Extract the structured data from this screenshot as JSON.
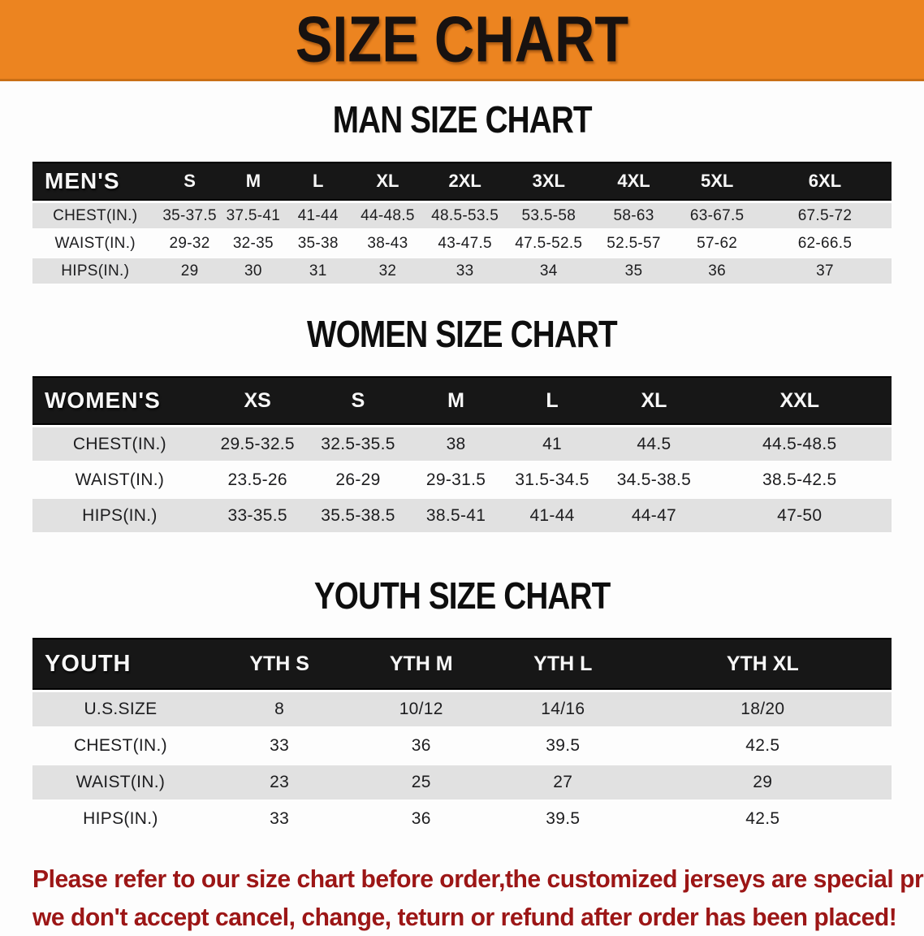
{
  "banner": {
    "title": "SIZE CHART",
    "bg_color": "#ec8420",
    "text_color": "#181210"
  },
  "colors": {
    "table_header_bar": "#171717",
    "row_shaded": "#e1e1e1",
    "disclaimer_text": "#9c1616"
  },
  "sections": [
    {
      "title": "MAN SIZE CHART",
      "table": {
        "header": [
          "MEN'S",
          "S",
          "M",
          "L",
          "XL",
          "2XL",
          "3XL",
          "4XL",
          "5XL",
          "6XL"
        ],
        "col_widths": [
          "14.6%",
          "7.4%",
          "7.4%",
          "7.7%",
          "8.5%",
          "9.5%",
          "10%",
          "9.8%",
          "9.6%",
          "15.5%"
        ],
        "rows": [
          {
            "label": "CHEST(IN.)",
            "shaded": true,
            "values": [
              "35-37.5",
              "37.5-41",
              "41-44",
              "44-48.5",
              "48.5-53.5",
              "53.5-58",
              "58-63",
              "63-67.5",
              "67.5-72"
            ]
          },
          {
            "label": "WAIST(IN.)",
            "shaded": false,
            "values": [
              "29-32",
              "32-35",
              "35-38",
              "38-43",
              "43-47.5",
              "47.5-52.5",
              "52.5-57",
              "57-62",
              "62-66.5"
            ]
          },
          {
            "label": "HIPS(IN.)",
            "shaded": true,
            "values": [
              "29",
              "30",
              "31",
              "32",
              "33",
              "34",
              "35",
              "36",
              "37"
            ]
          }
        ]
      }
    },
    {
      "title": "WOMEN SIZE CHART",
      "table": {
        "header": [
          "WOMEN'S",
          "XS",
          "S",
          "M",
          "L",
          "XL",
          "XXL"
        ],
        "col_widths": [
          "20.3%",
          "11.8%",
          "11.6%",
          "11.2%",
          "11.2%",
          "12.5%",
          "21.4%"
        ],
        "rows": [
          {
            "label": "CHEST(IN.)",
            "shaded": true,
            "values": [
              "29.5-32.5",
              "32.5-35.5",
              "38",
              "41",
              "44.5",
              "44.5-48.5"
            ]
          },
          {
            "label": "WAIST(IN.)",
            "shaded": false,
            "values": [
              "23.5-26",
              "26-29",
              "29-31.5",
              "31.5-34.5",
              "34.5-38.5",
              "38.5-42.5"
            ]
          },
          {
            "label": "HIPS(IN.)",
            "shaded": true,
            "values": [
              "33-35.5",
              "35.5-38.5",
              "38.5-41",
              "41-44",
              "44-47",
              "47-50"
            ]
          }
        ]
      }
    },
    {
      "title": "YOUTH SIZE CHART",
      "table": {
        "header": [
          "YOUTH",
          "YTH S",
          "YTH M",
          "YTH L",
          "YTH XL"
        ],
        "col_widths": [
          "20.5%",
          "16.5%",
          "16.5%",
          "16.5%",
          "30%"
        ],
        "rows": [
          {
            "label": "U.S.SIZE",
            "shaded": true,
            "values": [
              "8",
              "10/12",
              "14/16",
              "18/20"
            ]
          },
          {
            "label": "CHEST(IN.)",
            "shaded": false,
            "values": [
              "33",
              "36",
              "39.5",
              "42.5"
            ]
          },
          {
            "label": "WAIST(IN.)",
            "shaded": true,
            "values": [
              "23",
              "25",
              "27",
              "29"
            ]
          },
          {
            "label": "HIPS(IN.)",
            "shaded": false,
            "values": [
              "33",
              "36",
              "39.5",
              "42.5"
            ]
          }
        ]
      }
    }
  ],
  "disclaimer": {
    "lines": [
      "Please refer to our size chart before order,the customized jerseys are special products,",
      "we don't accept cancel, change, teturn or refund after order has been placed!"
    ]
  }
}
